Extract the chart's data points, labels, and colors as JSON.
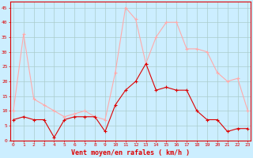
{
  "hours": [
    0,
    1,
    2,
    3,
    4,
    5,
    6,
    7,
    8,
    9,
    10,
    11,
    12,
    13,
    14,
    15,
    16,
    17,
    18,
    19,
    20,
    21,
    22,
    23
  ],
  "vent_moyen": [
    7,
    8,
    7,
    7,
    1,
    7,
    8,
    8,
    8,
    3,
    12,
    17,
    20,
    26,
    17,
    18,
    17,
    17,
    10,
    7,
    7,
    3,
    4,
    4
  ],
  "en_rafales": [
    10,
    36,
    14,
    12,
    10,
    8,
    9,
    10,
    8,
    7,
    23,
    45,
    41,
    26,
    35,
    40,
    40,
    31,
    31,
    30,
    23,
    20,
    21,
    10
  ],
  "color_moyen": "#dd0000",
  "color_rafales": "#ffaaaa",
  "bg_color": "#cceeff",
  "grid_color": "#aacccc",
  "xlabel": "Vent moyen/en rafales ( km/h )",
  "ylim": [
    0,
    47
  ],
  "yticks": [
    0,
    5,
    10,
    15,
    20,
    25,
    30,
    35,
    40,
    45
  ],
  "xticks": [
    0,
    1,
    2,
    3,
    4,
    5,
    6,
    7,
    8,
    9,
    10,
    11,
    12,
    13,
    14,
    15,
    16,
    17,
    18,
    19,
    20,
    21,
    22,
    23
  ]
}
